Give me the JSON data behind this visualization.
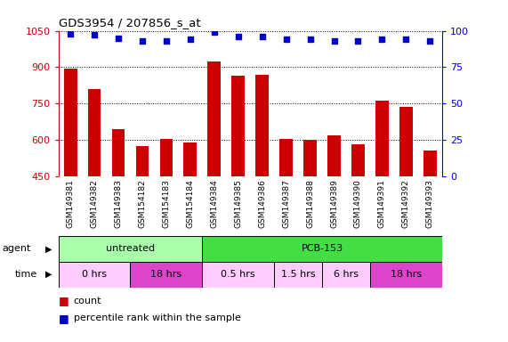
{
  "title": "GDS3954 / 207856_s_at",
  "samples": [
    "GSM149381",
    "GSM149382",
    "GSM149383",
    "GSM154182",
    "GSM154183",
    "GSM154184",
    "GSM149384",
    "GSM149385",
    "GSM149386",
    "GSM149387",
    "GSM149388",
    "GSM149389",
    "GSM149390",
    "GSM149391",
    "GSM149392",
    "GSM149393"
  ],
  "counts": [
    895,
    810,
    645,
    575,
    605,
    590,
    925,
    865,
    870,
    605,
    600,
    620,
    580,
    760,
    735,
    555
  ],
  "percentile_ranks": [
    98,
    97,
    95,
    93,
    93,
    94,
    99,
    96,
    96,
    94,
    94,
    93,
    93,
    94,
    94,
    93
  ],
  "ylim": [
    450,
    1050
  ],
  "yticks_left": [
    450,
    600,
    750,
    900,
    1050
  ],
  "yticks_right": [
    0,
    25,
    50,
    75,
    100
  ],
  "bar_color": "#cc0000",
  "dot_color": "#0000cc",
  "grid_color": "#000000",
  "xtick_bg_color": "#c8c8c8",
  "plot_bg_color": "#ffffff",
  "agent_groups": [
    {
      "label": "untreated",
      "start": 0,
      "end": 6,
      "color": "#aaffaa"
    },
    {
      "label": "PCB-153",
      "start": 6,
      "end": 16,
      "color": "#44dd44"
    }
  ],
  "time_groups": [
    {
      "label": "0 hrs",
      "start": 0,
      "end": 3,
      "color": "#ffccff"
    },
    {
      "label": "18 hrs",
      "start": 3,
      "end": 6,
      "color": "#dd44cc"
    },
    {
      "label": "0.5 hrs",
      "start": 6,
      "end": 9,
      "color": "#ffccff"
    },
    {
      "label": "1.5 hrs",
      "start": 9,
      "end": 11,
      "color": "#ffccff"
    },
    {
      "label": "6 hrs",
      "start": 11,
      "end": 13,
      "color": "#ffccff"
    },
    {
      "label": "18 hrs",
      "start": 13,
      "end": 16,
      "color": "#dd44cc"
    }
  ],
  "legend_count_color": "#cc0000",
  "legend_dot_color": "#0000cc",
  "fig_width": 5.71,
  "fig_height": 3.84,
  "dpi": 100
}
